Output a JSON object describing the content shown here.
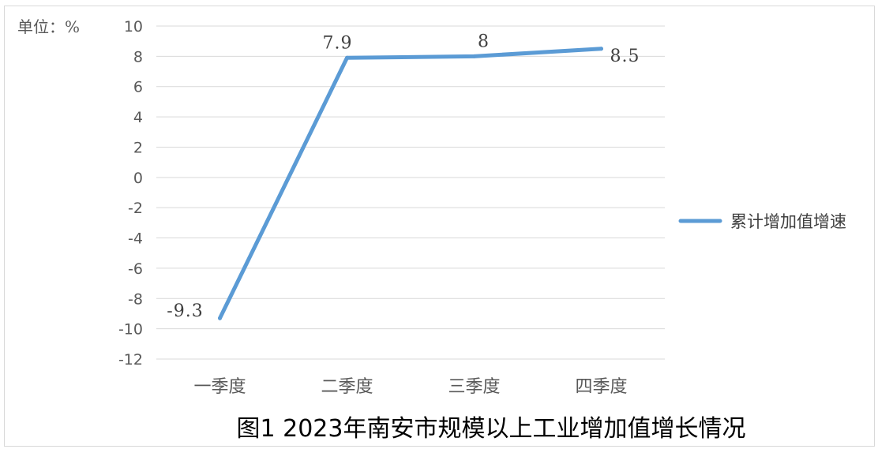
{
  "chart_data": {
    "type": "line",
    "title": "图1 2023年南安市规模以上工业增加值增长情况",
    "unit_label": "单位：%",
    "categories": [
      "一季度",
      "二季度",
      "三季度",
      "四季度"
    ],
    "series": [
      {
        "name": "累计增加值增速",
        "values": [
          -9.3,
          7.9,
          8,
          8.5
        ],
        "labels": [
          "-9.3",
          "7.9",
          "8",
          "8.5"
        ],
        "color": "#5b9bd5"
      }
    ],
    "ylim": [
      -12,
      10
    ],
    "yticks": [
      10,
      8,
      6,
      4,
      2,
      0,
      -2,
      -4,
      -6,
      -8,
      -10,
      -12
    ],
    "grid": true,
    "legend_position": "right"
  }
}
